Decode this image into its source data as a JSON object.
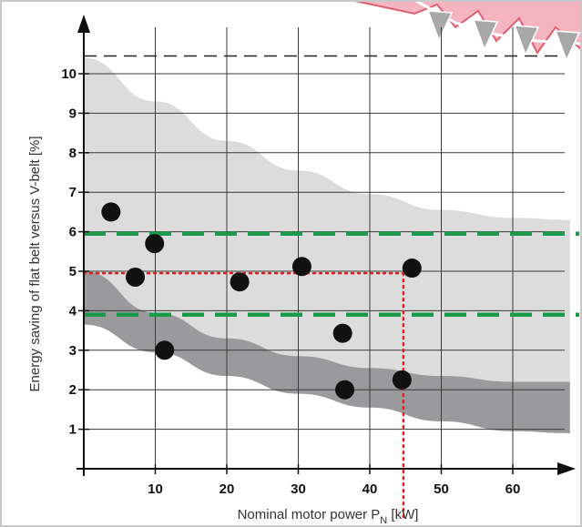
{
  "chart_data": {
    "type": "scatter",
    "xlabel": "Nominal motor power P",
    "xlabel_sub": "N",
    "xlabel_unit": " [kW]",
    "ylabel": "Energy saving of flat belt versus V-belt [%]",
    "xlim": [
      0,
      68
    ],
    "ylim": [
      0,
      11
    ],
    "x_ticks": [
      10,
      20,
      30,
      40,
      50,
      60
    ],
    "y_ticks": [
      1,
      2,
      3,
      4,
      5,
      6,
      7,
      8,
      9,
      10
    ],
    "grid": true,
    "points": [
      {
        "x": 3.8,
        "y": 6.5
      },
      {
        "x": 7.2,
        "y": 4.85
      },
      {
        "x": 9.9,
        "y": 5.7
      },
      {
        "x": 11.3,
        "y": 3.0
      },
      {
        "x": 21.8,
        "y": 4.73
      },
      {
        "x": 30.5,
        "y": 5.12
      },
      {
        "x": 36.2,
        "y": 3.43
      },
      {
        "x": 36.5,
        "y": 2.0
      },
      {
        "x": 44.5,
        "y": 2.25
      },
      {
        "x": 45.9,
        "y": 5.08
      }
    ],
    "reference_lines": {
      "black_dashed_y": 10.45,
      "green_dashed_y": [
        5.95,
        3.9
      ],
      "red_dotted": {
        "x": 44.7,
        "y": 4.95
      }
    },
    "bands": {
      "light_upper": [
        [
          0,
          10.4
        ],
        [
          10,
          9.3
        ],
        [
          20,
          8.3
        ],
        [
          30,
          7.55
        ],
        [
          40,
          6.95
        ],
        [
          50,
          6.55
        ],
        [
          60,
          6.35
        ],
        [
          68,
          6.3
        ]
      ],
      "light_lower": [
        [
          0,
          3.65
        ],
        [
          10,
          2.95
        ],
        [
          20,
          2.35
        ],
        [
          30,
          1.9
        ],
        [
          40,
          1.55
        ],
        [
          50,
          1.2
        ],
        [
          60,
          0.95
        ],
        [
          68,
          0.9
        ]
      ],
      "dark_upper": [
        [
          0,
          5.0
        ],
        [
          10,
          3.95
        ],
        [
          20,
          3.3
        ],
        [
          30,
          2.85
        ],
        [
          40,
          2.55
        ],
        [
          50,
          2.35
        ],
        [
          60,
          2.2
        ],
        [
          68,
          2.2
        ]
      ],
      "dark_lower": [
        [
          0,
          3.65
        ],
        [
          10,
          2.95
        ],
        [
          20,
          2.35
        ],
        [
          30,
          1.9
        ],
        [
          40,
          1.55
        ],
        [
          50,
          1.2
        ],
        [
          60,
          0.95
        ],
        [
          68,
          0.9
        ]
      ]
    },
    "colors": {
      "light_band": "#dcdcdd",
      "dark_band": "#9a9a9c",
      "grid": "#3a3a3a",
      "green": "#1a9a4a",
      "red": "#e02020",
      "point": "#111111",
      "decor_fill": "#f5b5c0",
      "decor_stroke": "#e06070"
    }
  }
}
